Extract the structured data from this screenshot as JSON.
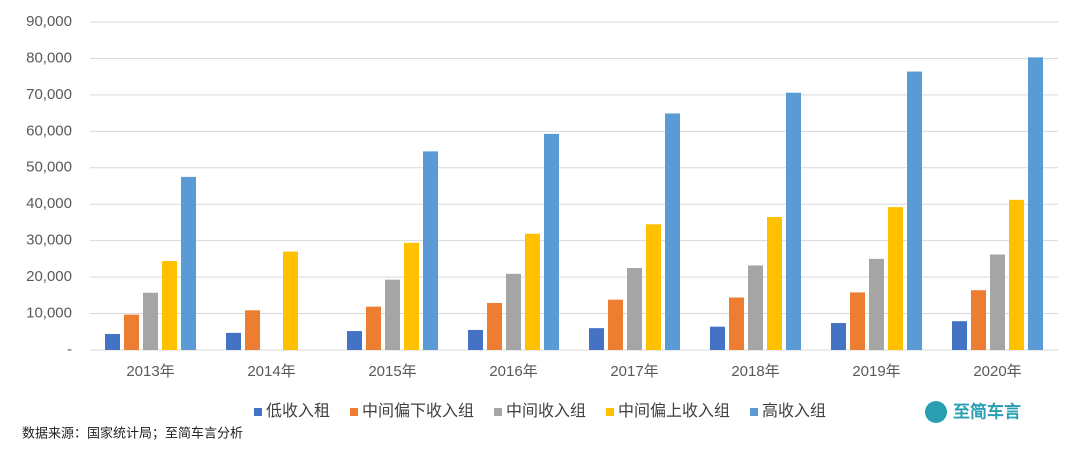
{
  "chart_data": {
    "type": "bar",
    "categories": [
      "2013年",
      "2014年",
      "2015年",
      "2016年",
      "2017年",
      "2018年",
      "2019年",
      "2020年"
    ],
    "series": [
      {
        "name": "低收入租",
        "color": "#4472c4",
        "values": [
          4400,
          4700,
          5200,
          5500,
          6000,
          6400,
          7400,
          7900
        ]
      },
      {
        "name": "中间偏下收入组",
        "color": "#ed7d31",
        "values": [
          9700,
          10900,
          11900,
          12900,
          13800,
          14400,
          15800,
          16400
        ]
      },
      {
        "name": "中间收入组",
        "color": "#a5a5a5",
        "values": [
          15700,
          null,
          19300,
          20900,
          22500,
          23200,
          25000,
          26200
        ]
      },
      {
        "name": "中间偏上收入组",
        "color": "#ffc000",
        "values": [
          24400,
          27000,
          29400,
          31900,
          34500,
          36500,
          39200,
          41200
        ]
      },
      {
        "name": "高收入组",
        "color": "#5b9bd5",
        "values": [
          47500,
          null,
          54500,
          59300,
          64900,
          70600,
          76400,
          80300
        ]
      }
    ],
    "ylim": [
      0,
      90000
    ],
    "yticks": [
      {
        "value": 0,
        "label": "-"
      },
      {
        "value": 10000,
        "label": "10,000"
      },
      {
        "value": 20000,
        "label": "20,000"
      },
      {
        "value": 30000,
        "label": "30,000"
      },
      {
        "value": 40000,
        "label": "40,000"
      },
      {
        "value": 50000,
        "label": "50,000"
      },
      {
        "value": 60000,
        "label": "60,000"
      },
      {
        "value": 70000,
        "label": "70,000"
      },
      {
        "value": 80000,
        "label": "80,000"
      },
      {
        "value": 90000,
        "label": "90,000"
      }
    ],
    "grid": true,
    "legend": "bottom",
    "source": "数据来源：国家统计局；至简车言分析",
    "logo_text": "至简车言"
  }
}
